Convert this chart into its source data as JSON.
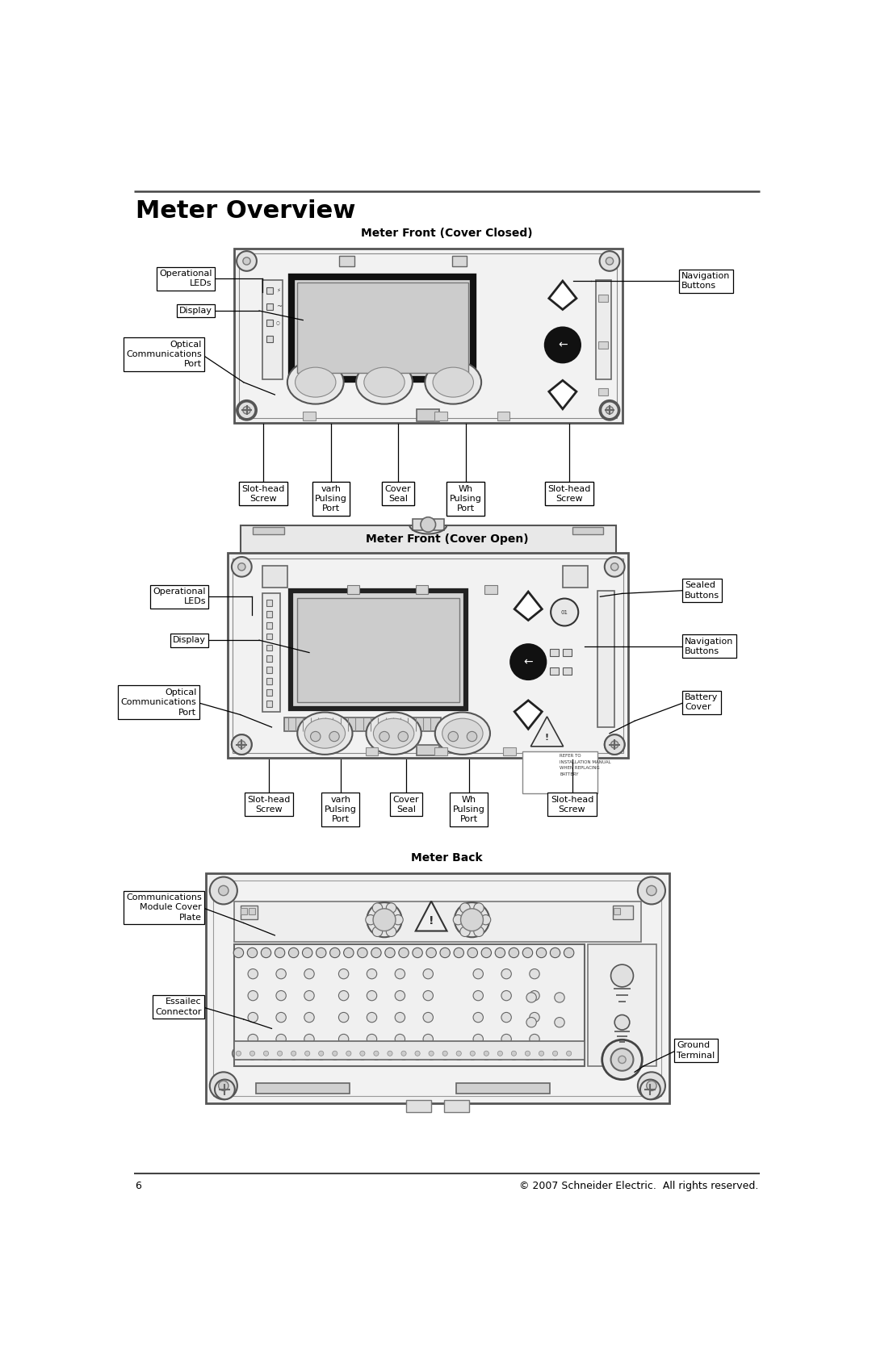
{
  "title": "Meter Overview",
  "page_number": "6",
  "footer_text": "© 2007 Schneider Electric.  All rights reserved.",
  "section1_title": "Meter Front (Cover Closed)",
  "section2_title": "Meter Front (Cover Open)",
  "section3_title": "Meter Back",
  "bg_color": "#ffffff",
  "line_color": "#000000",
  "text_color": "#000000"
}
